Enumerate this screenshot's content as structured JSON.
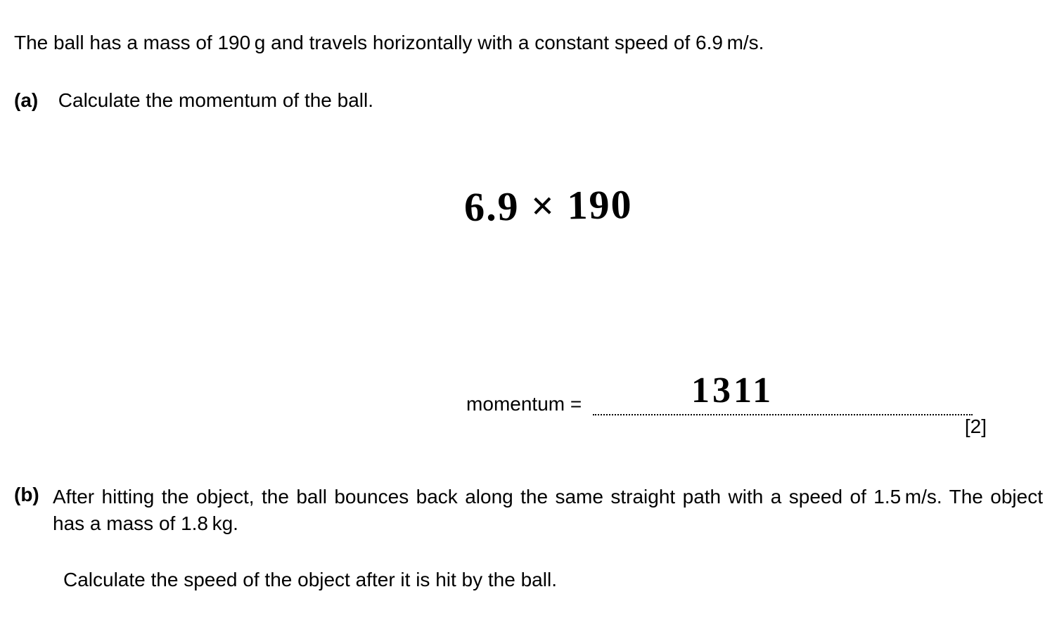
{
  "intro": "The ball has a mass of 190 g and travels horizontally with a constant speed of 6.9 m/s.",
  "partA": {
    "label": "(a)",
    "text": "Calculate the momentum of the ball.",
    "handwriting_work": "6.9 × 190",
    "answer_label": "momentum =",
    "handwritten_answer": "1311",
    "marks": "[2]"
  },
  "partB": {
    "label": "(b)",
    "text": "After hitting the object, the ball bounces back along the same straight path with a speed of 1.5 m/s. The object has a mass of 1.8 kg.",
    "calc_text": "Calculate the speed of the object after it is hit by the ball."
  },
  "styling": {
    "font_family": "Arial",
    "font_size_body": 28,
    "handwriting_font": "Comic Sans MS",
    "handwriting_size": 58,
    "handwriting_color": "#000000",
    "background_color": "#ffffff",
    "text_color": "#000000",
    "dotted_line_width": 540
  }
}
